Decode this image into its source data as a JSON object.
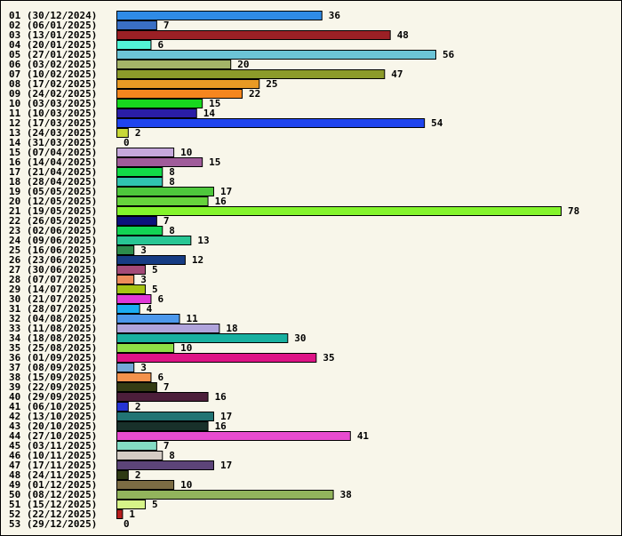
{
  "chart_data": {
    "type": "bar",
    "orientation": "horizontal",
    "title": "",
    "xlabel": "",
    "ylabel": "",
    "grid": false,
    "legend": "none",
    "data_labels": true,
    "xlim": [
      0,
      78
    ],
    "categories": [
      "01 (30/12/2024)",
      "02 (06/01/2025)",
      "03 (13/01/2025)",
      "04 (20/01/2025)",
      "05 (27/01/2025)",
      "06 (03/02/2025)",
      "07 (10/02/2025)",
      "08 (17/02/2025)",
      "09 (24/02/2025)",
      "10 (03/03/2025)",
      "11 (10/03/2025)",
      "12 (17/03/2025)",
      "13 (24/03/2025)",
      "14 (31/03/2025)",
      "15 (07/04/2025)",
      "16 (14/04/2025)",
      "17 (21/04/2025)",
      "18 (28/04/2025)",
      "19 (05/05/2025)",
      "20 (12/05/2025)",
      "21 (19/05/2025)",
      "22 (26/05/2025)",
      "23 (02/06/2025)",
      "24 (09/06/2025)",
      "25 (16/06/2025)",
      "26 (23/06/2025)",
      "27 (30/06/2025)",
      "28 (07/07/2025)",
      "29 (14/07/2025)",
      "30 (21/07/2025)",
      "31 (28/07/2025)",
      "32 (04/08/2025)",
      "33 (11/08/2025)",
      "34 (18/08/2025)",
      "35 (25/08/2025)",
      "36 (01/09/2025)",
      "37 (08/09/2025)",
      "38 (15/09/2025)",
      "39 (22/09/2025)",
      "40 (29/09/2025)",
      "41 (06/10/2025)",
      "42 (13/10/2025)",
      "43 (20/10/2025)",
      "44 (27/10/2025)",
      "45 (03/11/2025)",
      "46 (10/11/2025)",
      "47 (17/11/2025)",
      "48 (24/11/2025)",
      "49 (01/12/2025)",
      "50 (08/12/2025)",
      "51 (15/12/2025)",
      "52 (22/12/2025)",
      "53 (29/12/2025)"
    ],
    "values": [
      36,
      7,
      48,
      6,
      56,
      20,
      47,
      25,
      22,
      15,
      14,
      54,
      2,
      0,
      10,
      15,
      8,
      8,
      17,
      16,
      78,
      7,
      8,
      13,
      3,
      12,
      5,
      3,
      5,
      6,
      4,
      11,
      18,
      30,
      10,
      35,
      3,
      6,
      7,
      16,
      2,
      17,
      16,
      41,
      7,
      8,
      17,
      2,
      10,
      38,
      5,
      1,
      0
    ],
    "colors": [
      "#2f8be6",
      "#3a6fc4",
      "#9b2025",
      "#52f4d6",
      "#6cc4d6",
      "#a4b468",
      "#8c9b2a",
      "#e89a24",
      "#f5861e",
      "#18d81e",
      "#2a1da6",
      "#1f44ee",
      "#c8d838",
      "#ffffff",
      "#c6a8dc",
      "#a05c9a",
      "#12dc48",
      "#30c4b0",
      "#4ec83c",
      "#66d43c",
      "#84f42c",
      "#0c127c",
      "#12d454",
      "#28c694",
      "#2c8c4c",
      "#163c84",
      "#a44a78",
      "#ee8c5a",
      "#a6c414",
      "#e038d8",
      "#1aacf2",
      "#4c98ec",
      "#b0a4dc",
      "#18b0a0",
      "#8ee046",
      "#de1486",
      "#74a8d8",
      "#f4924c",
      "#343c14",
      "#4c1e3a",
      "#2634d4",
      "#227474",
      "#18302a",
      "#e84cd0",
      "#84dcc4",
      "#d4ccc4",
      "#5c4478",
      "#2e3a14",
      "#7c6c44",
      "#92b45c",
      "#d6f488",
      "#b81e1e",
      "#ffffff"
    ]
  }
}
